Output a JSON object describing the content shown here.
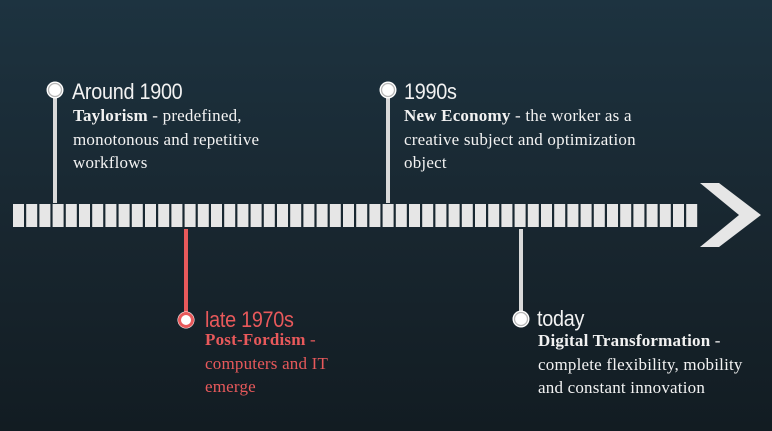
{
  "colors": {
    "background_top": "#1d3340",
    "background_bottom": "#121c22",
    "timeline": "#e6e6e6",
    "text": "#f2f2f2",
    "highlight": "#e8595b"
  },
  "events": [
    {
      "year": "Around 1900",
      "term": "Taylorism",
      "description": " - predefined, monotonous and repetitive workflows",
      "side": "above",
      "highlight": false
    },
    {
      "year": "late 1970s",
      "term": "Post-Fordism",
      "description": " - computers and IT emerge",
      "side": "below",
      "highlight": true
    },
    {
      "year": "1990s",
      "term": "New Economy",
      "description": " - the worker as a creative subject and optimization object",
      "side": "above",
      "highlight": false
    },
    {
      "year": "today",
      "term": "Digital Transformation",
      "description": " - complete flexibility, mobility and constant innovation",
      "side": "below",
      "highlight": false
    }
  ]
}
